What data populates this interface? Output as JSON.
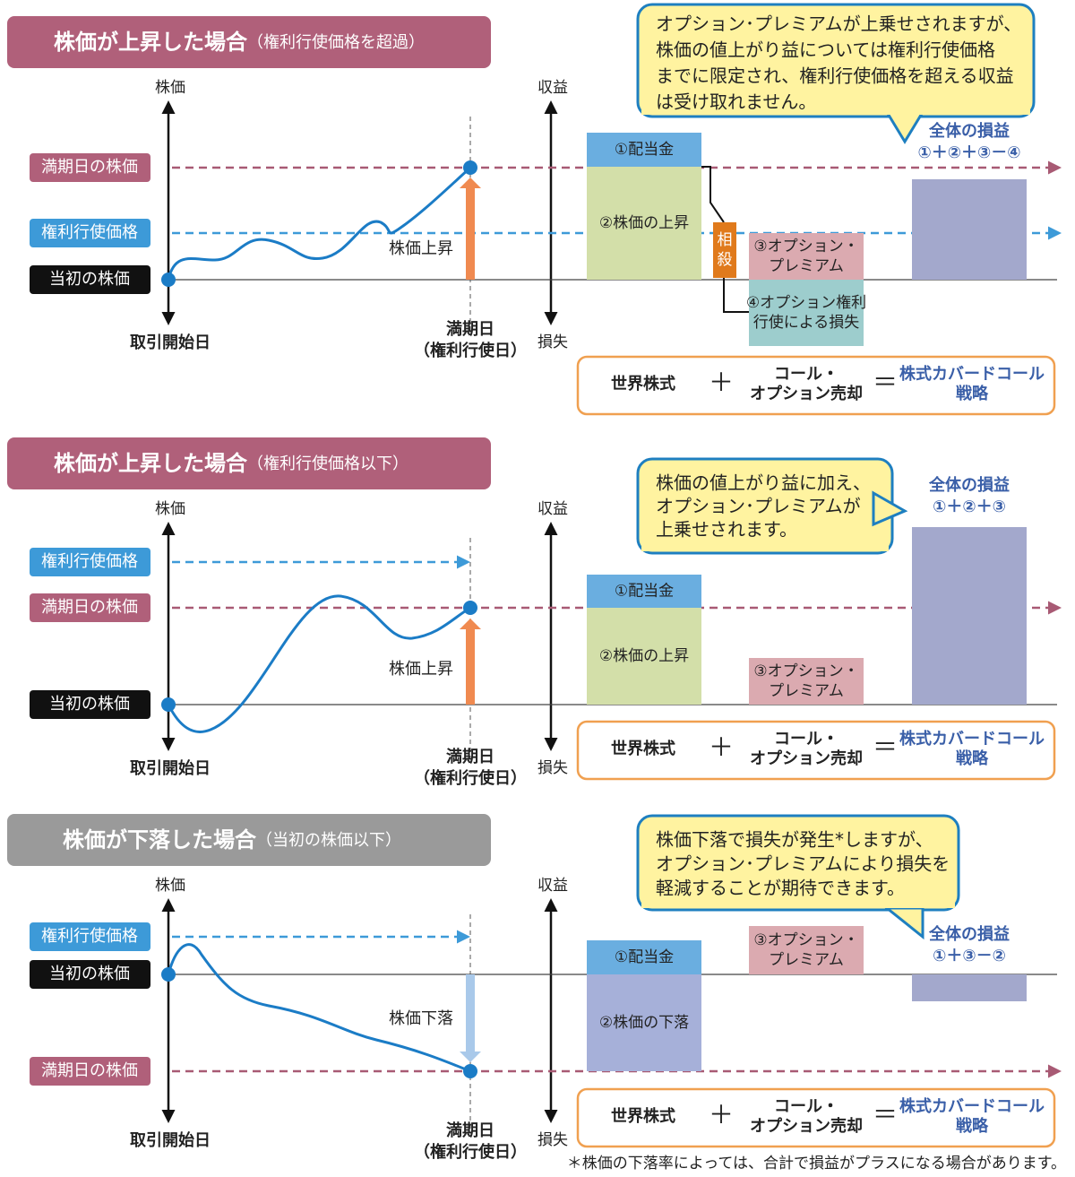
{
  "panels": [
    {
      "title": "株価が上昇した場合",
      "subtitle": "（権利行使価格を超過）",
      "callout": [
        "オプション･プレミアムが上乗せされますが、",
        "株価の値上がり益については権利行使価格",
        "までに限定され、権利行使価格を超える収益",
        "は受け取れません。"
      ],
      "left_axis": "株価",
      "start_label": "取引開始日",
      "end_label": [
        "満期日",
        "（権利行使日）"
      ],
      "right_axis_top": "収益",
      "right_axis_bottom": "損失",
      "levels": [
        "満期日の株価",
        "権利行使価格",
        "当初の株価"
      ],
      "move_label": "株価上昇",
      "boxes": [
        [
          "①配当金"
        ],
        [
          "②株価の上昇"
        ],
        [
          "③オプション・",
          "プレミアム"
        ],
        [
          "④オプション権利",
          "行使による損失"
        ]
      ],
      "offset_label": [
        "相",
        "殺"
      ],
      "total": {
        "title": "全体の損益",
        "formula": "①＋②＋③－④"
      },
      "strategy": {
        "stock": "世界株式",
        "plus": "＋",
        "option": [
          "コール・",
          "オプション売却"
        ],
        "equals": "＝",
        "result": [
          "株式カバードコール",
          "戦略"
        ]
      }
    },
    {
      "title": "株価が上昇した場合",
      "subtitle": "（権利行使価格以下）",
      "callout": [
        "株価の値上がり益に加え、",
        "オプション･プレミアムが",
        "上乗せされます。"
      ],
      "left_axis": "株価",
      "start_label": "取引開始日",
      "end_label": [
        "満期日",
        "（権利行使日）"
      ],
      "right_axis_top": "収益",
      "right_axis_bottom": "損失",
      "levels": [
        "権利行使価格",
        "満期日の株価",
        "当初の株価"
      ],
      "move_label": "株価上昇",
      "boxes": [
        [
          "①配当金"
        ],
        [
          "②株価の上昇"
        ],
        [
          "③オプション・",
          "プレミアム"
        ]
      ],
      "total": {
        "title": "全体の損益",
        "formula": "①＋②＋③"
      },
      "strategy": {
        "stock": "世界株式",
        "plus": "＋",
        "option": [
          "コール・",
          "オプション売却"
        ],
        "equals": "＝",
        "result": [
          "株式カバードコール",
          "戦略"
        ]
      }
    },
    {
      "title": "株価が下落した場合",
      "subtitle": "（当初の株価以下）",
      "callout": [
        "株価下落で損失が発生*しますが、",
        "オプション･プレミアムにより損失を",
        "軽減することが期待できます。"
      ],
      "left_axis": "株価",
      "start_label": "取引開始日",
      "end_label": [
        "満期日",
        "（権利行使日）"
      ],
      "right_axis_top": "収益",
      "right_axis_bottom": "損失",
      "levels": [
        "権利行使価格",
        "当初の株価",
        "満期日の株価"
      ],
      "move_label": "株価下落",
      "boxes": [
        [
          "①配当金"
        ],
        [
          "②株価の下落"
        ],
        [
          "③オプション・",
          "プレミアム"
        ]
      ],
      "total": {
        "title": "全体の損益",
        "formula": "①＋③－②"
      },
      "strategy": {
        "stock": "世界株式",
        "plus": "＋",
        "option": [
          "コール・",
          "オプション売却"
        ],
        "equals": "＝",
        "result": [
          "株式カバードコール",
          "戦略"
        ]
      }
    }
  ],
  "footnote": "＊株価の下落率によっては、合計で損益がプラスになる場合があります。"
}
